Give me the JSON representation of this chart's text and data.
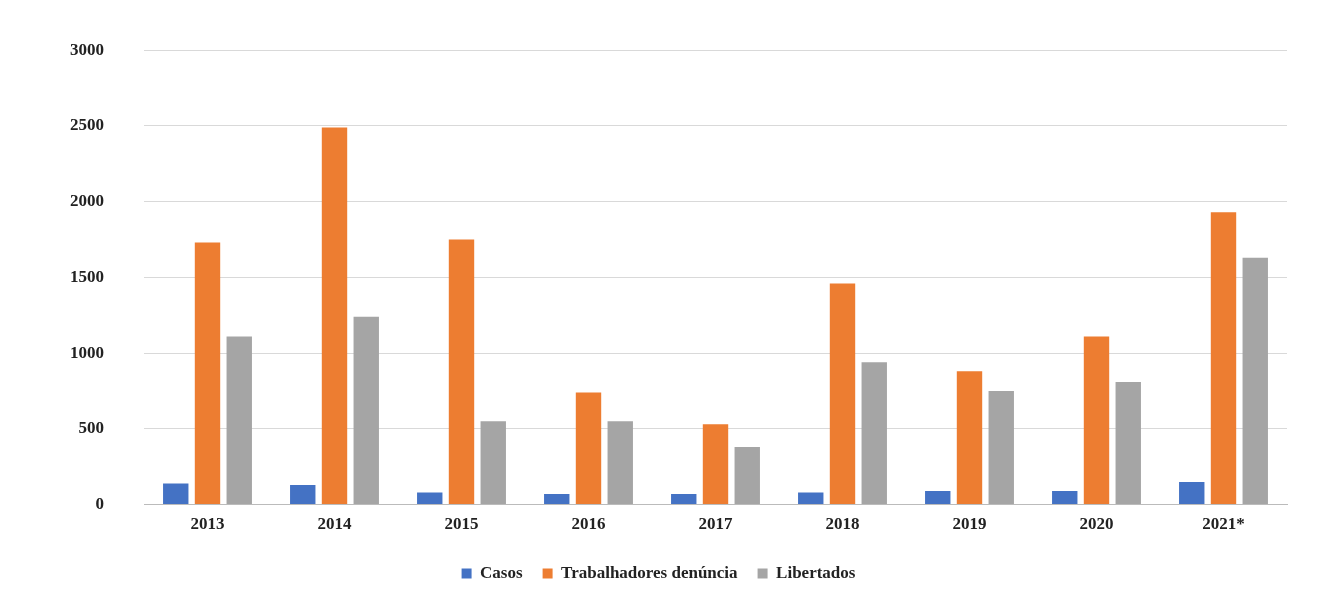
{
  "chart_data": {
    "type": "bar",
    "categories": [
      "2013",
      "2014",
      "2015",
      "2016",
      "2017",
      "2018",
      "2019",
      "2020",
      "2021*"
    ],
    "series": [
      {
        "name": "Casos",
        "color": "#4472c4",
        "values": [
          140,
          130,
          80,
          70,
          70,
          80,
          90,
          90,
          150
        ]
      },
      {
        "name": "Trabalhadores denúncia",
        "color": "#ed7d31",
        "values": [
          1730,
          2490,
          1750,
          740,
          530,
          1460,
          880,
          1110,
          1930
        ]
      },
      {
        "name": "Libertados",
        "color": "#a5a5a5",
        "values": [
          1110,
          1240,
          550,
          550,
          380,
          940,
          750,
          810,
          1630
        ]
      }
    ],
    "ylim": [
      0,
      3000
    ],
    "yticks": [
      0,
      500,
      1000,
      1500,
      2000,
      2500,
      3000
    ],
    "grid": "y",
    "legend": "bottom"
  }
}
